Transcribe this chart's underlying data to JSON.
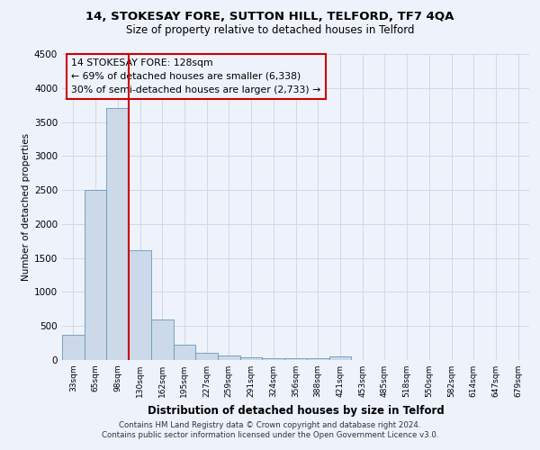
{
  "title1": "14, STOKESAY FORE, SUTTON HILL, TELFORD, TF7 4QA",
  "title2": "Size of property relative to detached houses in Telford",
  "xlabel": "Distribution of detached houses by size in Telford",
  "ylabel": "Number of detached properties",
  "categories": [
    "33sqm",
    "65sqm",
    "98sqm",
    "130sqm",
    "162sqm",
    "195sqm",
    "227sqm",
    "259sqm",
    "291sqm",
    "324sqm",
    "356sqm",
    "388sqm",
    "421sqm",
    "453sqm",
    "485sqm",
    "518sqm",
    "550sqm",
    "582sqm",
    "614sqm",
    "647sqm",
    "679sqm"
  ],
  "values": [
    375,
    2500,
    3700,
    1620,
    590,
    230,
    110,
    65,
    40,
    30,
    30,
    30,
    55,
    0,
    0,
    0,
    0,
    0,
    0,
    0,
    0
  ],
  "bar_color": "#ccd9e8",
  "bar_edgecolor": "#6699bb",
  "vline_x_idx": 3,
  "vline_color": "#cc0000",
  "annotation_title": "14 STOKESAY FORE: 128sqm",
  "annotation_line1": "← 69% of detached houses are smaller (6,338)",
  "annotation_line2": "30% of semi-detached houses are larger (2,733) →",
  "annotation_box_edgecolor": "#cc0000",
  "ylim": [
    0,
    4500
  ],
  "yticks": [
    0,
    500,
    1000,
    1500,
    2000,
    2500,
    3000,
    3500,
    4000,
    4500
  ],
  "footer1": "Contains HM Land Registry data © Crown copyright and database right 2024.",
  "footer2": "Contains public sector information licensed under the Open Government Licence v3.0.",
  "bg_color": "#eef2fb",
  "grid_color": "#d0d8e8"
}
